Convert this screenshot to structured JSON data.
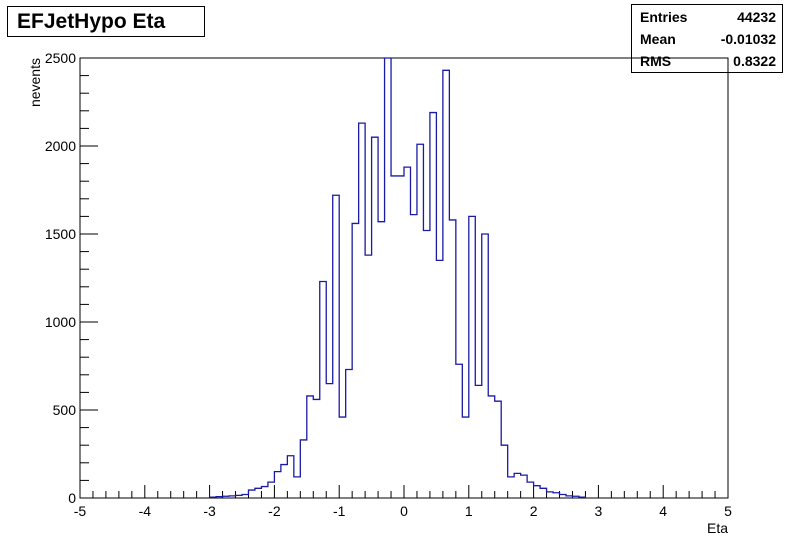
{
  "stats": {
    "rows": [
      {
        "label": "Entries",
        "value": "44232"
      },
      {
        "label": "Mean",
        "value": "-0.01032"
      },
      {
        "label": "RMS",
        "value": "0.8322"
      }
    ]
  },
  "chart_data": {
    "type": "bar",
    "title": "EFJetHypo Eta",
    "xlabel": "Eta",
    "ylabel": "nevents",
    "xlim": [
      -5,
      5
    ],
    "ylim": [
      0,
      2500
    ],
    "x_ticks": [
      "-5",
      "-4",
      "-3",
      "-2",
      "-1",
      "0",
      "1",
      "2",
      "3",
      "4",
      "5"
    ],
    "y_ticks": [
      "0",
      "500",
      "1000",
      "1500",
      "2000",
      "2500"
    ],
    "bins": {
      "start": -3.0,
      "width": 0.1
    },
    "values": [
      5,
      8,
      10,
      12,
      15,
      20,
      45,
      55,
      65,
      90,
      150,
      190,
      240,
      120,
      330,
      580,
      560,
      1230,
      650,
      1720,
      460,
      730,
      1560,
      2130,
      1380,
      2050,
      1570,
      2500,
      1830,
      1830,
      1880,
      1610,
      2010,
      1520,
      2190,
      1350,
      2430,
      1580,
      760,
      460,
      1600,
      640,
      1500,
      580,
      550,
      300,
      120,
      140,
      130,
      90,
      70,
      55,
      35,
      30,
      20,
      12,
      10,
      5
    ],
    "line_color": "#1a1aa6",
    "grid": false,
    "legend": "none"
  }
}
